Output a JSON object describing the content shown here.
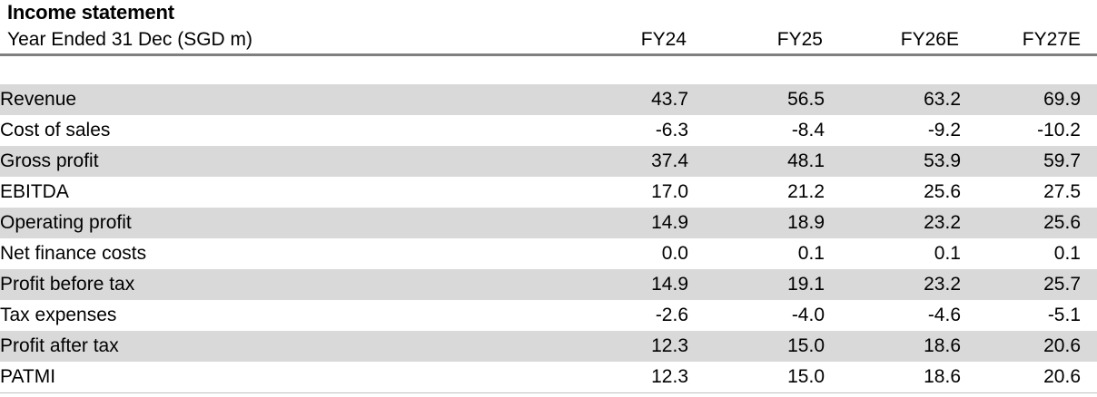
{
  "title": "Income statement",
  "table": {
    "label_header": "Year Ended 31 Dec (SGD m)",
    "columns": [
      "FY24",
      "FY25",
      "FY26E",
      "FY27E"
    ],
    "rows": [
      {
        "label": "Revenue",
        "values": [
          "43.7",
          "56.5",
          "63.2",
          "69.9"
        ]
      },
      {
        "label": "Cost of sales",
        "values": [
          "-6.3",
          "-8.4",
          "-9.2",
          "-10.2"
        ]
      },
      {
        "label": "Gross profit",
        "values": [
          "37.4",
          "48.1",
          "53.9",
          "59.7"
        ]
      },
      {
        "label": "EBITDA",
        "values": [
          "17.0",
          "21.2",
          "25.6",
          "27.5"
        ]
      },
      {
        "label": "Operating profit",
        "values": [
          "14.9",
          "18.9",
          "23.2",
          "25.6"
        ]
      },
      {
        "label": "Net finance costs",
        "values": [
          "0.0",
          "0.1",
          "0.1",
          "0.1"
        ]
      },
      {
        "label": "Profit before tax",
        "values": [
          "14.9",
          "19.1",
          "23.2",
          "25.7"
        ]
      },
      {
        "label": "Tax expenses",
        "values": [
          "-2.6",
          "-4.0",
          "-4.6",
          "-5.1"
        ]
      },
      {
        "label": "Profit after tax",
        "values": [
          "12.3",
          "15.0",
          "18.6",
          "20.6"
        ]
      },
      {
        "label": "PATMI",
        "values": [
          "12.3",
          "15.0",
          "18.6",
          "20.6"
        ]
      }
    ]
  },
  "colors": {
    "row_shade": "#d9d9d9",
    "header_rule": "#7f7f7f",
    "bottom_rule": "#bfbfbf",
    "text": "#000000"
  },
  "chart_data": {
    "type": "table",
    "title": "Income statement",
    "unit_label": "Year Ended 31 Dec (SGD m)",
    "categories": [
      "FY24",
      "FY25",
      "FY26E",
      "FY27E"
    ],
    "series": [
      {
        "name": "Revenue",
        "values": [
          43.7,
          56.5,
          63.2,
          69.9
        ]
      },
      {
        "name": "Cost of sales",
        "values": [
          -6.3,
          -8.4,
          -9.2,
          -10.2
        ]
      },
      {
        "name": "Gross profit",
        "values": [
          37.4,
          48.1,
          53.9,
          59.7
        ]
      },
      {
        "name": "EBITDA",
        "values": [
          17.0,
          21.2,
          25.6,
          27.5
        ]
      },
      {
        "name": "Operating profit",
        "values": [
          14.9,
          18.9,
          23.2,
          25.6
        ]
      },
      {
        "name": "Net finance costs",
        "values": [
          0.0,
          0.1,
          0.1,
          0.1
        ]
      },
      {
        "name": "Profit before tax",
        "values": [
          14.9,
          19.1,
          23.2,
          25.7
        ]
      },
      {
        "name": "Tax expenses",
        "values": [
          -2.6,
          -4.0,
          -4.6,
          -5.1
        ]
      },
      {
        "name": "Profit after tax",
        "values": [
          12.3,
          15.0,
          18.6,
          20.6
        ]
      },
      {
        "name": "PATMI",
        "values": [
          12.3,
          15.0,
          18.6,
          20.6
        ]
      }
    ],
    "layout": {
      "row_shading": "alternating starting shaded",
      "value_alignment": "right",
      "header_rule": true,
      "bottom_rule": true
    }
  }
}
